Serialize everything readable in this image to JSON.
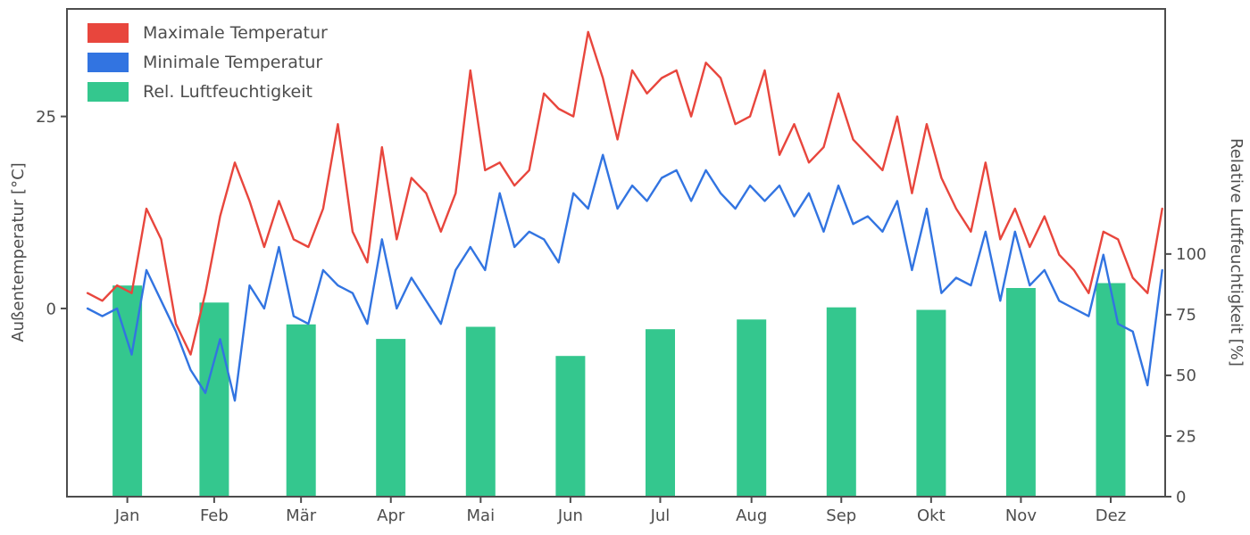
{
  "figure": {
    "background": "#ffffff",
    "frame_color": "#4d4d4d",
    "text_color": "#4d4d4d"
  },
  "legend": {
    "position": "upper left"
  },
  "chart_data": {
    "type": "line",
    "title": "",
    "x_axis": {
      "unit": "day_of_year",
      "tick_labels": [
        "Jan",
        "Feb",
        "Mär",
        "Apr",
        "Mai",
        "Jun",
        "Jul",
        "Aug",
        "Sep",
        "Okt",
        "Nov",
        "Dez"
      ],
      "range_days": [
        -5,
        368
      ]
    },
    "left_axis": {
      "label": "Außentemperatur [°C]",
      "ticks": [
        0,
        25
      ],
      "range": [
        -24.5,
        39
      ]
    },
    "right_axis": {
      "label": "Relative Luftfeuchtigkeit [%]",
      "ticks": [
        0,
        25,
        50,
        75,
        100
      ],
      "range": [
        0,
        201
      ]
    },
    "x_days": [
      2,
      7,
      12,
      17,
      22,
      27,
      32,
      37,
      42,
      47,
      52,
      57,
      62,
      67,
      72,
      77,
      82,
      87,
      92,
      97,
      102,
      107,
      112,
      117,
      122,
      127,
      132,
      137,
      142,
      147,
      152,
      157,
      162,
      167,
      172,
      177,
      182,
      187,
      192,
      197,
      202,
      207,
      212,
      217,
      222,
      227,
      232,
      237,
      242,
      247,
      252,
      257,
      262,
      267,
      272,
      277,
      282,
      287,
      292,
      297,
      302,
      307,
      312,
      317,
      322,
      327,
      332,
      337,
      342,
      347,
      352,
      357,
      362,
      367
    ],
    "series": [
      {
        "name": "Maximale Temperatur",
        "type": "line",
        "axis": "left",
        "color": "#e8463d",
        "values": [
          2,
          1,
          3,
          2,
          13,
          9,
          -2,
          -6,
          2,
          12,
          19,
          14,
          8,
          14,
          9,
          8,
          13,
          24,
          10,
          6,
          21,
          9,
          17,
          15,
          10,
          15,
          31,
          18,
          19,
          16,
          18,
          28,
          26,
          25,
          36,
          30,
          22,
          31,
          28,
          30,
          31,
          25,
          32,
          30,
          24,
          25,
          31,
          20,
          24,
          19,
          21,
          28,
          22,
          20,
          18,
          25,
          15,
          24,
          17,
          13,
          10,
          19,
          9,
          13,
          8,
          12,
          7,
          5,
          2,
          10,
          9,
          4,
          2,
          13
        ]
      },
      {
        "name": "Minimale Temperatur",
        "type": "line",
        "axis": "left",
        "color": "#3274e1",
        "values": [
          0,
          -1,
          0,
          -6,
          5,
          1,
          -3,
          -8,
          -11,
          -4,
          -12,
          3,
          0,
          8,
          -1,
          -2,
          5,
          3,
          2,
          -2,
          9,
          0,
          4,
          1,
          -2,
          5,
          8,
          5,
          15,
          8,
          10,
          9,
          6,
          15,
          13,
          20,
          13,
          16,
          14,
          17,
          18,
          14,
          18,
          15,
          13,
          16,
          14,
          16,
          12,
          15,
          10,
          16,
          11,
          12,
          10,
          14,
          5,
          13,
          2,
          4,
          3,
          10,
          1,
          10,
          3,
          5,
          1,
          0,
          -1,
          7,
          -2,
          -3,
          -10,
          5
        ]
      },
      {
        "name": "Rel. Luftfeuchtigkeit",
        "type": "bar",
        "axis": "right",
        "color": "#34c78e",
        "bar_width_days": 10,
        "values": [
          87,
          80,
          71,
          65,
          70,
          58,
          69,
          73,
          78,
          77,
          86,
          88
        ]
      }
    ]
  }
}
